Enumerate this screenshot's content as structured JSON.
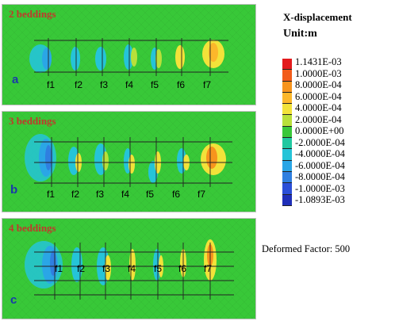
{
  "panels": [
    {
      "id": "a",
      "title": "2 beddings",
      "labels": [
        "f1",
        "f2",
        "f3",
        "f4",
        "f5",
        "f6",
        "f7"
      ]
    },
    {
      "id": "b",
      "title": "3 beddings",
      "labels": [
        "f1",
        "f2",
        "f3",
        "f4",
        "f5",
        "f6",
        "f7"
      ]
    },
    {
      "id": "c",
      "title": "4 beddings",
      "labels": [
        "f1",
        "f2",
        "f3",
        "f4",
        "f5",
        "f6",
        "f7"
      ]
    }
  ],
  "legend": {
    "title": "X-displacement",
    "unit": "Unit:m",
    "values": [
      "1.1431E-03",
      "1.0000E-03",
      "8.0000E-04",
      "6.0000E-04",
      "4.0000E-04",
      "2.0000E-04",
      "0.0000E+00",
      "-2.0000E-04",
      "-4.0000E-04",
      "-6.0000E-04",
      "-8.0000E-04",
      "-1.0000E-03",
      "-1.0893E-03"
    ],
    "colors": [
      "#e31a1c",
      "#f25c1a",
      "#f7941d",
      "#fcb72b",
      "#f2e23a",
      "#b8e03a",
      "#39c83a",
      "#20c8a0",
      "#25c4d8",
      "#2aa6e6",
      "#2f7fe0",
      "#2b4fd8",
      "#1f2fb8"
    ],
    "background_color": "#38c838"
  },
  "deformed_factor": "Deformed Factor: 500"
}
